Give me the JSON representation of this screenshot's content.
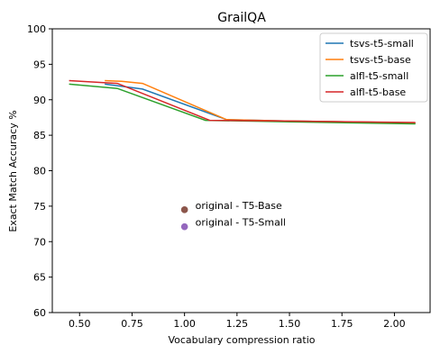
{
  "chart_data": {
    "type": "line",
    "title": "GrailQA",
    "xlabel": "Vocabulary compression ratio",
    "ylabel": "Exact Match Accuracy %",
    "xlim": [
      0.37,
      2.17
    ],
    "ylim": [
      60,
      100
    ],
    "xticks": [
      "0.50",
      "0.75",
      "1.00",
      "1.25",
      "1.50",
      "1.75",
      "2.00"
    ],
    "yticks": [
      "60",
      "65",
      "70",
      "75",
      "80",
      "85",
      "90",
      "95",
      "100"
    ],
    "grid": false,
    "legend_position": "top-right",
    "series": [
      {
        "name": "tsvs-t5-small",
        "color": "#1f77b4",
        "x": [
          0.62,
          0.7,
          0.8,
          1.2,
          1.5,
          2.0,
          2.1
        ],
        "y": [
          92.2,
          91.9,
          91.5,
          87.2,
          87.0,
          86.8,
          86.7
        ]
      },
      {
        "name": "tsvs-t5-base",
        "color": "#ff7f0e",
        "x": [
          0.62,
          0.7,
          0.8,
          1.2,
          1.5,
          2.0,
          2.1
        ],
        "y": [
          92.7,
          92.6,
          92.3,
          87.2,
          87.0,
          86.8,
          86.7
        ]
      },
      {
        "name": "alfl-t5-small",
        "color": "#2ca02c",
        "x": [
          0.45,
          0.68,
          1.1,
          1.5,
          2.1
        ],
        "y": [
          92.2,
          91.6,
          87.1,
          86.9,
          86.6
        ]
      },
      {
        "name": "alfl-t5-base",
        "color": "#d62728",
        "x": [
          0.45,
          0.68,
          1.12,
          1.5,
          2.1
        ],
        "y": [
          92.7,
          92.3,
          87.1,
          87.0,
          86.8
        ]
      }
    ],
    "points": [
      {
        "label": "original - T5-Base",
        "x": 1.0,
        "y": 74.5,
        "color": "#8c564b"
      },
      {
        "label": "original - T5-Small",
        "x": 1.0,
        "y": 72.1,
        "color": "#9467bd"
      }
    ]
  }
}
